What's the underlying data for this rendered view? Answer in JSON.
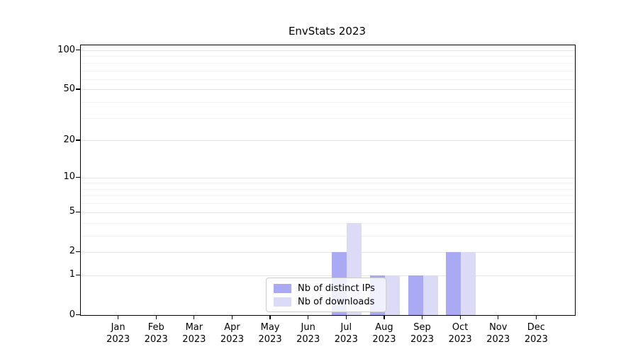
{
  "figure": {
    "title": "EnvStats 2023"
  },
  "chart_data": {
    "type": "bar",
    "title": "EnvStats 2023",
    "categories": [
      "Jan",
      "Feb",
      "Mar",
      "Apr",
      "May",
      "Jun",
      "Jul",
      "Aug",
      "Sep",
      "Oct",
      "Nov",
      "Dec"
    ],
    "category_year_label": "2023",
    "series": [
      {
        "name": "Nb of distinct IPs",
        "color": "#a9a9f4",
        "values": [
          0,
          0,
          0,
          0,
          0,
          0,
          2,
          1,
          1,
          2,
          0,
          0
        ]
      },
      {
        "name": "Nb of downloads",
        "color": "#dbdbf8",
        "values": [
          0,
          0,
          0,
          0,
          0,
          0,
          4,
          1,
          1,
          2,
          0,
          0
        ]
      }
    ],
    "xlabel": "",
    "ylabel": "",
    "yscale": "log1p",
    "ylim": [
      0,
      100
    ],
    "y_major_ticks": [
      0,
      1,
      2,
      5,
      10,
      20,
      50,
      100
    ],
    "y_minor_gridlines": [
      3,
      4,
      6,
      7,
      8,
      9,
      30,
      40,
      60,
      70,
      80,
      90
    ],
    "grid": "horizontal",
    "legend_position": "inside-bottom-center",
    "colors": {
      "axis": "#000000",
      "grid_major": "#e4e4e4",
      "grid_minor": "#f2f2f2",
      "background": "#ffffff"
    }
  }
}
